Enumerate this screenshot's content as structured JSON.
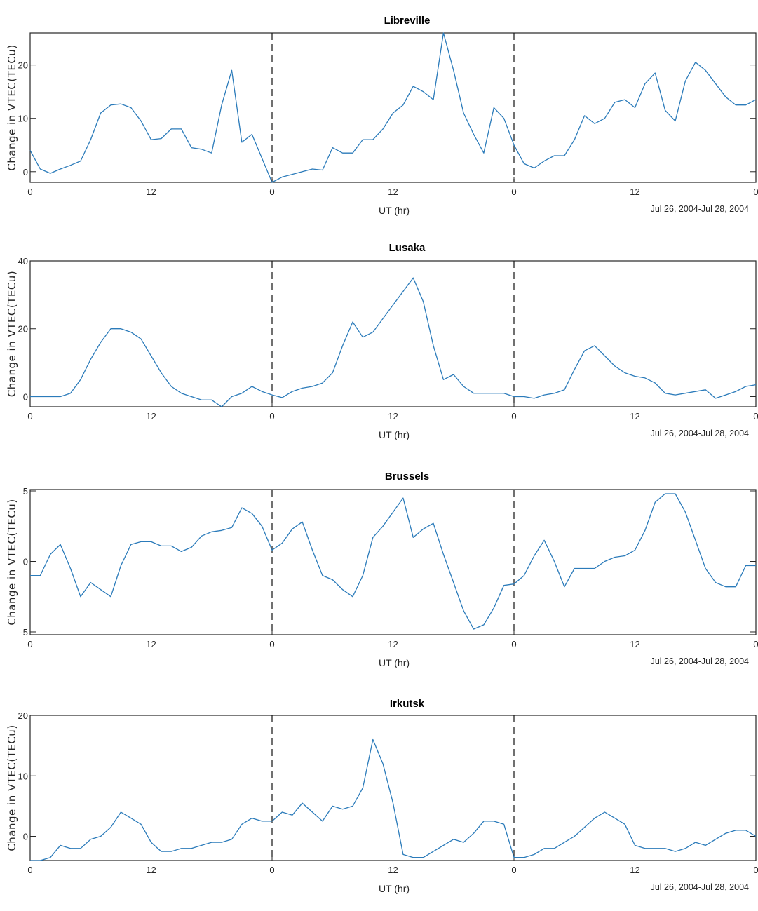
{
  "chart_data": [
    {
      "type": "line",
      "title": "Libreville",
      "xlabel": "UT (hr)",
      "ylabel": "Change in VTEC(TECu)",
      "date_range": "Jul 26, 2004-Jul 28, 2004",
      "x_ticks": [
        "0",
        "12",
        "0",
        "12",
        "0",
        "12",
        "0"
      ],
      "xlim": [
        0,
        72
      ],
      "ylim": [
        -2,
        26
      ],
      "y_ticks": [
        0,
        10,
        20
      ],
      "day_boundaries": [
        24,
        48
      ],
      "color": "#2b7bba",
      "series": [
        {
          "x": [
            0,
            1,
            2,
            3,
            4,
            5,
            6,
            7,
            8,
            9,
            10,
            11,
            12,
            13,
            14,
            15,
            16,
            17,
            18,
            19,
            20,
            21,
            22,
            23,
            24,
            25,
            26,
            27,
            28,
            29,
            30,
            31,
            32,
            33,
            34,
            35,
            36,
            37,
            38,
            39,
            40,
            41,
            42,
            43,
            44,
            45,
            46,
            47,
            48,
            49,
            50,
            51,
            52,
            53,
            54,
            55,
            56,
            57,
            58,
            59,
            60,
            61,
            62,
            63,
            64,
            65,
            66,
            67,
            68,
            69,
            70,
            71,
            72
          ],
          "y": [
            4,
            0.5,
            -0.3,
            0.5,
            1.2,
            2,
            6,
            11,
            12.5,
            12.7,
            12,
            9.5,
            6,
            6.2,
            8,
            8,
            4.5,
            4.2,
            3.5,
            12.5,
            19,
            5.5,
            7,
            2.5,
            -2,
            -1,
            -0.5,
            0,
            0.5,
            0.3,
            4.5,
            3.5,
            3.5,
            6,
            6,
            8,
            11,
            12.5,
            16,
            15,
            13.5,
            26,
            19,
            11,
            7,
            3.5,
            12,
            10,
            5,
            1.5,
            0.7,
            2,
            3,
            3,
            6,
            10.5,
            9,
            10,
            13,
            13.5,
            12,
            16.5,
            18.5,
            11.5,
            9.5,
            17,
            20.5,
            19,
            16.5,
            14,
            12.5,
            12.5,
            13.5
          ]
        }
      ]
    },
    {
      "type": "line",
      "title": "Lusaka",
      "xlabel": "UT (hr)",
      "ylabel": "Change in VTEC(TECu)",
      "date_range": "Jul 26, 2004-Jul 28, 2004",
      "x_ticks": [
        "0",
        "12",
        "0",
        "12",
        "0",
        "12",
        "0"
      ],
      "xlim": [
        0,
        72
      ],
      "ylim": [
        -3,
        40
      ],
      "y_ticks": [
        0,
        20,
        40
      ],
      "day_boundaries": [
        24,
        48
      ],
      "color": "#2b7bba",
      "series": [
        {
          "x": [
            0,
            1,
            2,
            3,
            4,
            5,
            6,
            7,
            8,
            9,
            10,
            11,
            12,
            13,
            14,
            15,
            16,
            17,
            18,
            19,
            20,
            21,
            22,
            23,
            24,
            25,
            26,
            27,
            28,
            29,
            30,
            31,
            32,
            33,
            34,
            35,
            36,
            37,
            38,
            39,
            40,
            41,
            42,
            43,
            44,
            45,
            46,
            47,
            48,
            49,
            50,
            51,
            52,
            53,
            54,
            55,
            56,
            57,
            58,
            59,
            60,
            61,
            62,
            63,
            64,
            65,
            66,
            67,
            68,
            69,
            70,
            71,
            72
          ],
          "y": [
            0,
            0,
            0,
            0,
            1,
            5,
            11,
            16,
            20,
            20,
            19,
            17,
            12,
            7,
            3,
            1,
            0,
            -1,
            -1,
            -3,
            0,
            1,
            3,
            1.5,
            0.5,
            -0.3,
            1.5,
            2.5,
            3,
            4,
            7,
            15,
            22,
            17.5,
            19,
            23,
            27,
            31,
            35,
            28,
            15,
            5,
            6.5,
            3,
            1,
            1,
            1,
            1,
            0,
            0,
            -0.5,
            0.5,
            1,
            2,
            8,
            13.5,
            15,
            12,
            9,
            7,
            6,
            5.5,
            4,
            1,
            0.5,
            1,
            1.5,
            2,
            -0.5,
            0.5,
            1.5,
            3,
            3.5
          ]
        }
      ]
    },
    {
      "type": "line",
      "title": "Brussels",
      "xlabel": "UT (hr)",
      "ylabel": "Change in VTEC(TECu)",
      "date_range": "Jul 26, 2004-Jul 28, 2004",
      "x_ticks": [
        "0",
        "12",
        "0",
        "12",
        "0",
        "12",
        "0"
      ],
      "xlim": [
        0,
        72
      ],
      "ylim": [
        -5.2,
        5.1
      ],
      "y_ticks": [
        -5,
        0,
        5
      ],
      "day_boundaries": [
        24,
        48
      ],
      "color": "#2b7bba",
      "series": [
        {
          "x": [
            0,
            1,
            2,
            3,
            4,
            5,
            6,
            7,
            8,
            9,
            10,
            11,
            12,
            13,
            14,
            15,
            16,
            17,
            18,
            19,
            20,
            21,
            22,
            23,
            24,
            25,
            26,
            27,
            28,
            29,
            30,
            31,
            32,
            33,
            34,
            35,
            36,
            37,
            38,
            39,
            40,
            41,
            42,
            43,
            44,
            45,
            46,
            47,
            48,
            49,
            50,
            51,
            52,
            53,
            54,
            55,
            56,
            57,
            58,
            59,
            60,
            61,
            62,
            63,
            64,
            65,
            66,
            67,
            68,
            69,
            70,
            71,
            72
          ],
          "y": [
            -1,
            -1,
            0.5,
            1.2,
            -0.5,
            -2.5,
            -1.5,
            -2,
            -2.5,
            -0.3,
            1.2,
            1.4,
            1.4,
            1.1,
            1.1,
            0.7,
            1,
            1.8,
            2.1,
            2.2,
            2.4,
            3.8,
            3.4,
            2.5,
            0.8,
            1.3,
            2.3,
            2.8,
            0.8,
            -1,
            -1.3,
            -2,
            -2.5,
            -1,
            1.7,
            2.5,
            3.5,
            4.5,
            1.7,
            2.3,
            2.7,
            0.5,
            -1.5,
            -3.5,
            -4.8,
            -4.5,
            -3.3,
            -1.7,
            -1.6,
            -1,
            0.4,
            1.5,
            0,
            -1.8,
            -0.5,
            -0.5,
            -0.5,
            0,
            0.3,
            0.4,
            0.8,
            2.2,
            4.2,
            4.8,
            4.8,
            3.5,
            1.5,
            -0.5,
            -1.5,
            -1.8,
            -1.8,
            -0.3,
            -0.3
          ]
        }
      ]
    },
    {
      "type": "line",
      "title": "Irkutsk",
      "xlabel": "UT (hr)",
      "ylabel": "Change in VTEC(TECu)",
      "date_range": "Jul 26, 2004-Jul 28, 2004",
      "x_ticks": [
        "0",
        "12",
        "0",
        "12",
        "0",
        "12",
        "0"
      ],
      "xlim": [
        0,
        72
      ],
      "ylim": [
        -4,
        20
      ],
      "y_ticks": [
        0,
        10,
        20
      ],
      "day_boundaries": [
        24,
        48
      ],
      "color": "#2b7bba",
      "series": [
        {
          "x": [
            0,
            1,
            2,
            3,
            4,
            5,
            6,
            7,
            8,
            9,
            10,
            11,
            12,
            13,
            14,
            15,
            16,
            17,
            18,
            19,
            20,
            21,
            22,
            23,
            24,
            25,
            26,
            27,
            28,
            29,
            30,
            31,
            32,
            33,
            34,
            35,
            36,
            37,
            38,
            39,
            40,
            41,
            42,
            43,
            44,
            45,
            46,
            47,
            48,
            49,
            50,
            51,
            52,
            53,
            54,
            55,
            56,
            57,
            58,
            59,
            60,
            61,
            62,
            63,
            64,
            65,
            66,
            67,
            68,
            69,
            70,
            71,
            72
          ],
          "y": [
            -4,
            -4,
            -3.5,
            -1.5,
            -2,
            -2,
            -0.5,
            0,
            1.5,
            4,
            3,
            2,
            -1,
            -2.5,
            -2.5,
            -2,
            -2,
            -1.5,
            -1,
            -1,
            -0.5,
            2,
            3,
            2.5,
            2.5,
            4,
            3.5,
            5.5,
            4,
            2.5,
            5,
            4.5,
            5,
            8,
            16,
            12,
            5.5,
            -3,
            -3.5,
            -3.5,
            -2.5,
            -1.5,
            -0.5,
            -1,
            0.5,
            2.5,
            2.5,
            2,
            -3.5,
            -3.5,
            -3,
            -2,
            -2,
            -1,
            0,
            1.5,
            3,
            4,
            3,
            2,
            -1.5,
            -2,
            -2,
            -2,
            -2.5,
            -2,
            -1,
            -1.5,
            -0.5,
            0.5,
            1,
            1,
            0
          ]
        }
      ]
    }
  ]
}
